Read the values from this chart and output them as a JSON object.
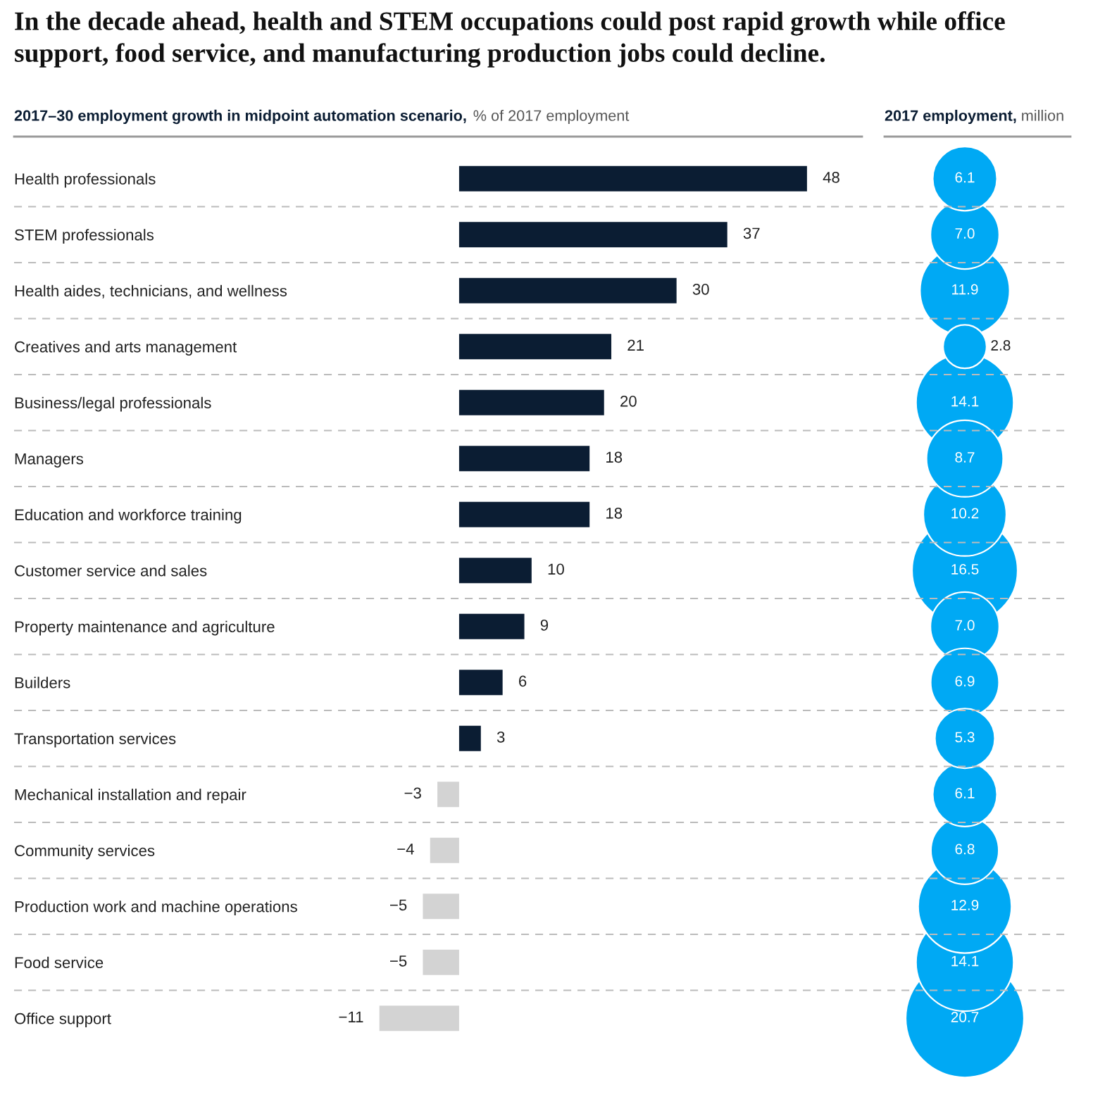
{
  "chart_data": [
    {
      "type": "bar",
      "orientation": "horizontal",
      "title": "In the decade ahead, health and STEM occupations could post rapid growth while office support, food service, and manufacturing production jobs could decline.",
      "subtitle": "2017–30 employment growth in midpoint automation scenario,",
      "xlabel": "% of 2017 employment",
      "categories": [
        "Health professionals",
        "STEM professionals",
        "Health aides, technicians, and wellness",
        "Creatives and arts management",
        "Business/legal professionals",
        "Managers",
        "Education and workforce training",
        "Customer service and sales",
        "Property maintenance and agriculture",
        "Builders",
        "Transportation services",
        "Mechanical installation and repair",
        "Community services",
        "Production work and machine operations",
        "Food service",
        "Office support"
      ],
      "values": [
        48,
        37,
        30,
        21,
        20,
        18,
        18,
        10,
        9,
        6,
        3,
        -3,
        -4,
        -5,
        -5,
        -11
      ],
      "colors": [
        "#0b1d33",
        "#0b1d33",
        "#0b1d33",
        "#0b1d33",
        "#0b1d33",
        "#0b1d33",
        "#0b1d33",
        "#0b1d33",
        "#0b1d33",
        "#0b1d33",
        "#0b1d33",
        "#d3d3d3",
        "#d3d3d3",
        "#d3d3d3",
        "#d3d3d3",
        "#d3d3d3"
      ],
      "data_labels": true,
      "grid": true,
      "tick_labels": "y"
    },
    {
      "type": "other",
      "subtitle": "2017 employment,",
      "xlabel": "million",
      "categories": [
        null,
        null,
        null,
        null,
        null,
        null,
        null,
        null,
        null,
        null,
        null,
        null,
        null,
        null,
        null,
        null
      ],
      "values": [
        6.1,
        7.0,
        11.9,
        2.8,
        14.1,
        8.7,
        10.2,
        16.5,
        7.0,
        6.9,
        5.3,
        6.1,
        6.8,
        12.9,
        14.1,
        20.7
      ],
      "value_labels": [
        "6.1",
        "7.0",
        "11.9",
        "2.8",
        "14.1",
        "8.7",
        "10.2",
        "16.5",
        "7.0",
        "6.9",
        "5.3",
        "6.1",
        "6.8",
        "12.9",
        "14.1",
        "20.7"
      ],
      "color": "#00a9f4"
    }
  ]
}
